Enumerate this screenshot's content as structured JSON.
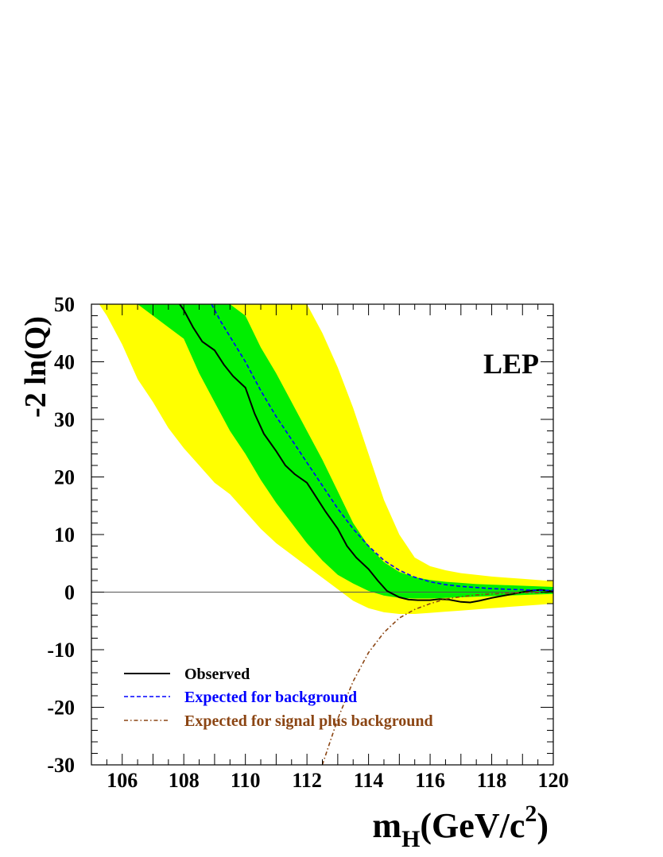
{
  "chart_data": {
    "type": "line",
    "title": "",
    "annotation": "LEP",
    "ylabel": "-2 ln(Q)",
    "xlabel": {
      "m": "m",
      "sub": "H",
      "unit": "(GeV/c",
      "sup": "2",
      "close": ")"
    },
    "xlim": [
      105,
      120
    ],
    "ylim": [
      -30,
      50
    ],
    "xticks": [
      106,
      108,
      110,
      112,
      114,
      116,
      118,
      120
    ],
    "yticks": [
      50,
      40,
      30,
      20,
      10,
      0,
      -10,
      -20,
      -30
    ],
    "grid": false,
    "legend_position": "bottom-left",
    "colors": {
      "observed": "#000000",
      "expected_background": "#0000ff",
      "expected_signal_plus_background": "#8b4513",
      "band_1sigma": "#00ee00",
      "band_2sigma": "#ffff00",
      "zero_line": "#555555"
    },
    "x": [
      105.0,
      105.5,
      106.0,
      106.5,
      107.0,
      107.5,
      108.0,
      108.5,
      109.0,
      109.5,
      110.0,
      110.5,
      111.0,
      111.5,
      112.0,
      112.5,
      113.0,
      113.5,
      114.0,
      114.5,
      115.0,
      115.5,
      116.0,
      116.5,
      117.0,
      117.5,
      118.0,
      118.5,
      119.0,
      119.5,
      120.0
    ],
    "bands": {
      "two_sigma": {
        "upper": [
          75,
          70,
          66,
          62,
          58,
          54,
          50,
          50,
          50,
          50,
          50,
          50,
          50,
          50,
          50,
          45,
          39,
          32,
          24,
          16,
          10,
          6,
          4.5,
          3.8,
          3.3,
          3.0,
          2.7,
          2.5,
          2.3,
          2.1,
          1.9
        ],
        "lower": [
          52,
          48,
          43,
          37,
          33,
          28.5,
          25,
          22,
          19,
          17,
          14,
          11,
          8.5,
          6.5,
          4.5,
          2.5,
          0.5,
          -1.5,
          -2.8,
          -3.5,
          -3.8,
          -3.8,
          -3.6,
          -3.4,
          -3.2,
          -3.0,
          -2.8,
          -2.6,
          -2.4,
          -2.2,
          -2.0
        ]
      },
      "one_sigma": {
        "upper": [
          72,
          66,
          62,
          58,
          54,
          50,
          50,
          50,
          50,
          50,
          48,
          42.5,
          38,
          33,
          28,
          23,
          17.5,
          12,
          8,
          5.2,
          3.5,
          2.6,
          2.1,
          1.8,
          1.6,
          1.4,
          1.3,
          1.2,
          1.1,
          1.0,
          0.9
        ],
        "lower": [
          62,
          58,
          53,
          50,
          48,
          46,
          44,
          38,
          33,
          28,
          24,
          19.5,
          15.5,
          12,
          8.5,
          5.5,
          3,
          1.5,
          0.2,
          -0.6,
          -1.0,
          -1.1,
          -1.1,
          -1.0,
          -0.9,
          -0.8,
          -0.7,
          -0.6,
          -0.5,
          -0.4,
          -0.3
        ]
      }
    },
    "series": [
      {
        "name": "Observed",
        "style": "solid",
        "x": [
          107.8,
          108.0,
          108.3,
          108.6,
          109.0,
          109.3,
          109.6,
          110.0,
          110.3,
          110.6,
          111.0,
          111.3,
          111.6,
          112.0,
          112.3,
          112.6,
          113.0,
          113.3,
          113.6,
          114.0,
          114.3,
          114.6,
          115.0,
          115.3,
          115.6,
          116.0,
          116.3,
          116.6,
          117.0,
          117.3,
          117.6,
          118.0,
          118.4,
          118.8,
          119.2,
          119.6,
          120.0
        ],
        "y": [
          50.5,
          49,
          46,
          43.5,
          42,
          39.5,
          37.5,
          35.5,
          31,
          27.5,
          24.5,
          22,
          20.5,
          19,
          16.5,
          14,
          11,
          8,
          6,
          4,
          2,
          0.2,
          -0.9,
          -1.3,
          -1.4,
          -1.4,
          -1.2,
          -1.3,
          -1.7,
          -1.8,
          -1.5,
          -1.0,
          -0.6,
          -0.2,
          0.2,
          0.4,
          0.1
        ]
      },
      {
        "name": "Expected for background",
        "style": "dashed",
        "x": [
          108.9,
          109.2,
          109.6,
          110.0,
          110.5,
          111.0,
          111.5,
          112.0,
          112.5,
          113.0,
          113.5,
          114.0,
          114.5,
          115.0,
          115.5,
          116.0,
          116.5,
          117.0,
          117.5,
          118.0,
          118.5,
          119.0,
          119.5,
          120.0
        ],
        "y": [
          50,
          47,
          43.5,
          40,
          35,
          30.5,
          26.5,
          22.5,
          18.5,
          14.5,
          11,
          8,
          5.5,
          3.8,
          2.6,
          1.8,
          1.3,
          1.0,
          0.8,
          0.6,
          0.5,
          0.4,
          0.3,
          0.3
        ]
      },
      {
        "name": "Expected for signal plus background",
        "style": "dashdot",
        "x": [
          112.5,
          113.0,
          113.5,
          114.0,
          114.5,
          115.0,
          115.5,
          116.0,
          116.5,
          117.0,
          117.5,
          118.0,
          118.5,
          119.0,
          119.5,
          120.0
        ],
        "y": [
          -30,
          -22,
          -15.5,
          -10.5,
          -7,
          -4.5,
          -3,
          -2,
          -1.2,
          -0.8,
          -0.5,
          -0.3,
          -0.2,
          -0.1,
          -0.1,
          0
        ]
      }
    ]
  }
}
